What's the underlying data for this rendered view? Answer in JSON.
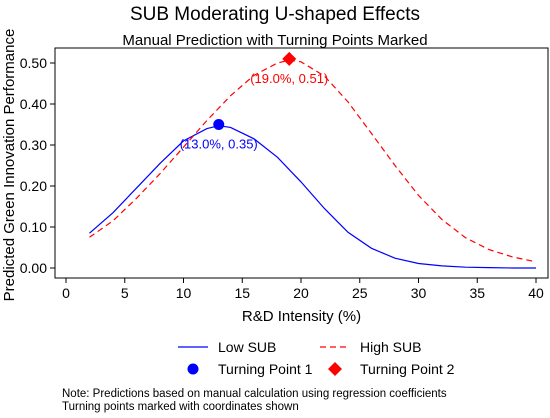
{
  "chart_data": {
    "type": "line",
    "title": "SUB Moderating U-shaped Effects",
    "subtitle": "Manual Prediction with Turning Points Marked",
    "xlabel": "R&D Intensity (%)",
    "ylabel": "Predicted Green Innovation Performance",
    "xlim": [
      0,
      40
    ],
    "ylim": [
      0,
      0.53
    ],
    "x_ticks": [
      0,
      5,
      10,
      15,
      20,
      25,
      30,
      35,
      40
    ],
    "x_tick_labels": [
      "0",
      "5",
      "10",
      "15",
      "20",
      "25",
      "30",
      "35",
      "40"
    ],
    "y_ticks": [
      0,
      0.1,
      0.2,
      0.3,
      0.4,
      0.5
    ],
    "y_tick_labels": [
      "0.00",
      "0.10",
      "0.20",
      "0.30",
      "0.40",
      "0.50"
    ],
    "grid": false,
    "legend_position": "bottom",
    "series": [
      {
        "name": "Low SUB",
        "color": "#0000ff",
        "line_style": "solid",
        "x": [
          2,
          4,
          6,
          8,
          10,
          12,
          13,
          14,
          16,
          18,
          20,
          22,
          24,
          26,
          28,
          30,
          32,
          34,
          36,
          38,
          40
        ],
        "y": [
          0.085,
          0.135,
          0.195,
          0.255,
          0.31,
          0.34,
          0.347,
          0.343,
          0.315,
          0.27,
          0.21,
          0.145,
          0.087,
          0.048,
          0.024,
          0.011,
          0.005,
          0.002,
          0.001,
          0.0,
          0.0
        ]
      },
      {
        "name": "High SUB",
        "color": "#ff0000",
        "line_style": "dashed",
        "x": [
          2,
          4,
          6,
          8,
          10,
          12,
          14,
          16,
          18,
          19,
          20,
          22,
          24,
          26,
          28,
          30,
          32,
          34,
          36,
          38,
          40
        ],
        "y": [
          0.075,
          0.115,
          0.17,
          0.23,
          0.295,
          0.36,
          0.42,
          0.47,
          0.5,
          0.507,
          0.503,
          0.468,
          0.405,
          0.328,
          0.25,
          0.177,
          0.118,
          0.074,
          0.045,
          0.027,
          0.015
        ]
      }
    ],
    "turning_points": [
      {
        "name": "Turning Point 1",
        "x": 13,
        "y": 0.35,
        "color": "#0000ff",
        "marker": "circle",
        "label": "(13.0%, 0.35)"
      },
      {
        "name": "Turning Point 2",
        "x": 19,
        "y": 0.51,
        "color": "#ff0000",
        "marker": "diamond",
        "label": "(19.0%, 0.51)"
      }
    ],
    "note": [
      "Note: Predictions based on manual calculation using regression coefficients",
      "Turning points marked with coordinates shown"
    ]
  }
}
